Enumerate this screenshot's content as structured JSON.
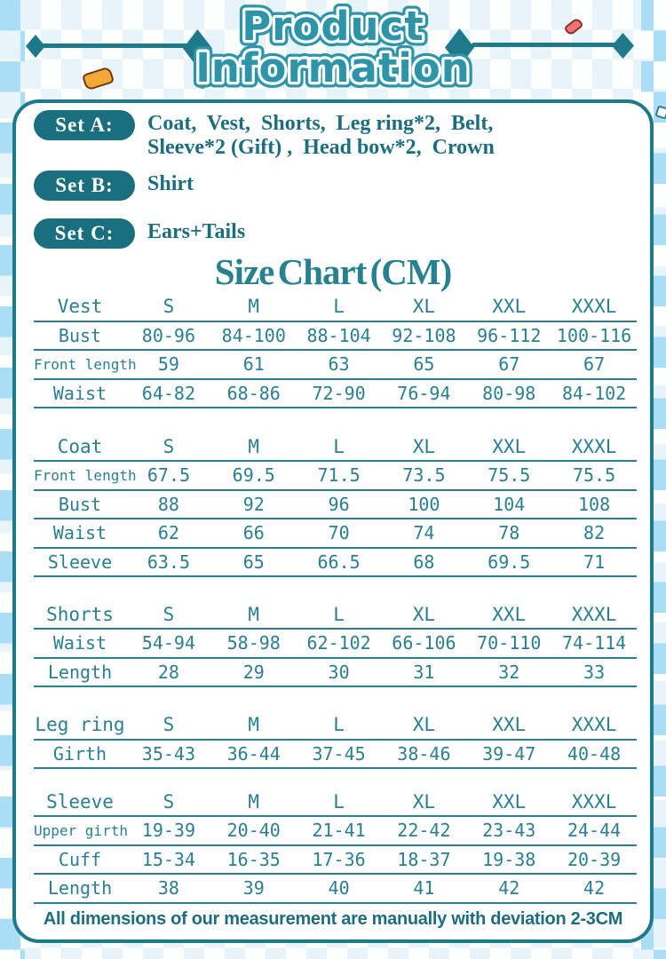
{
  "header": {
    "title_line1": "Product",
    "title_line2": "Information"
  },
  "sets": [
    {
      "label": "Set A:",
      "text": "Coat,  Vest,  Shorts,  Leg ring*2,  Belt,\nSleeve*2 (Gift) ,  Head bow*2,  Crown"
    },
    {
      "label": "Set B:",
      "text": "Shirt"
    },
    {
      "label": "Set C:",
      "text": "Ears+Tails"
    }
  ],
  "size_chart": {
    "title": "Size Chart (CM)",
    "unit": "CM",
    "sizes": [
      "S",
      "M",
      "L",
      "XL",
      "XXL",
      "XXXL"
    ],
    "tables": [
      {
        "name": "Vest",
        "rows": [
          {
            "label": "Bust",
            "values": [
              "80-96",
              "84-100",
              "88-104",
              "92-108",
              "96-112",
              "100-116"
            ]
          },
          {
            "label": "Front length",
            "values": [
              "59",
              "61",
              "63",
              "65",
              "67",
              "67"
            ]
          },
          {
            "label": "Waist",
            "values": [
              "64-82",
              "68-86",
              "72-90",
              "76-94",
              "80-98",
              "84-102"
            ]
          }
        ]
      },
      {
        "name": "Coat",
        "rows": [
          {
            "label": "Front length",
            "values": [
              "67.5",
              "69.5",
              "71.5",
              "73.5",
              "75.5",
              "75.5"
            ]
          },
          {
            "label": "Bust",
            "values": [
              "88",
              "92",
              "96",
              "100",
              "104",
              "108"
            ]
          },
          {
            "label": "Waist",
            "values": [
              "62",
              "66",
              "70",
              "74",
              "78",
              "82"
            ]
          },
          {
            "label": "Sleeve",
            "values": [
              "63.5",
              "65",
              "66.5",
              "68",
              "69.5",
              "71"
            ]
          }
        ]
      },
      {
        "name": "Shorts",
        "rows": [
          {
            "label": "Waist",
            "values": [
              "54-94",
              "58-98",
              "62-102",
              "66-106",
              "70-110",
              "74-114"
            ]
          },
          {
            "label": "Length",
            "values": [
              "28",
              "29",
              "30",
              "31",
              "32",
              "33"
            ]
          }
        ]
      },
      {
        "name": "Leg ring",
        "rows": [
          {
            "label": "Girth",
            "values": [
              "35-43",
              "36-44",
              "37-45",
              "38-46",
              "39-47",
              "40-48"
            ]
          }
        ]
      },
      {
        "name": "Sleeve",
        "rows": [
          {
            "label": "Upper girth",
            "values": [
              "19-39",
              "20-40",
              "21-41",
              "22-42",
              "23-43",
              "24-44"
            ]
          },
          {
            "label": "Cuff",
            "values": [
              "15-34",
              "16-35",
              "17-36",
              "18-37",
              "19-38",
              "20-39"
            ]
          },
          {
            "label": "Length",
            "values": [
              "38",
              "39",
              "40",
              "41",
              "42",
              "42"
            ]
          }
        ]
      }
    ]
  },
  "footer": {
    "note": "All dimensions of our measurement are manually with deviation 2-3CM"
  },
  "colors": {
    "teal": "#2a7f92",
    "teal_dark": "#1c6d7e",
    "pill_background": "#196f7e",
    "panel_border": "#1e7a8b",
    "title_teal": "#2e95a9",
    "diamond_blue": "#aedff5",
    "confetti_orange": "#f5a83a",
    "confetti_red": "#ed7570",
    "confetti_cyan": "#d9f6f4"
  }
}
